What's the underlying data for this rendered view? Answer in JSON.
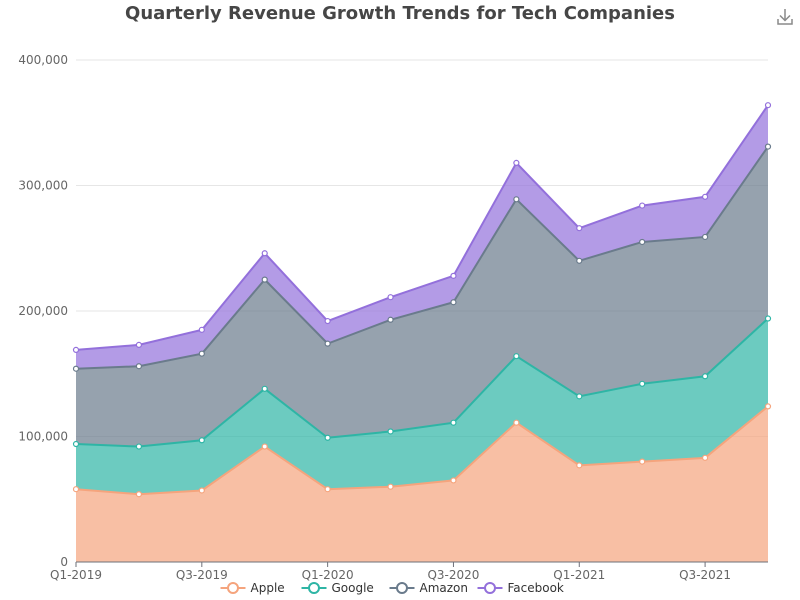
{
  "toolbar": {
    "download_icon": "download-icon"
  },
  "chart_data": {
    "type": "area",
    "stacked": true,
    "title": "Quarterly Revenue Growth Trends for Tech Companies",
    "x": [
      "Q1-2019",
      "Q2-2019",
      "Q3-2019",
      "Q4-2019",
      "Q1-2020",
      "Q2-2020",
      "Q3-2020",
      "Q4-2020",
      "Q1-2021",
      "Q2-2021",
      "Q3-2021",
      "Q4-2021"
    ],
    "x_tick_labels": [
      "Q1-2019",
      "Q3-2019",
      "Q1-2020",
      "Q3-2020",
      "Q1-2021",
      "Q3-2021"
    ],
    "y_ticks": [
      "0",
      "100,000",
      "200,000",
      "300,000",
      "400,000"
    ],
    "ylim": [
      0,
      400000
    ],
    "grid": true,
    "legend_position": "bottom",
    "series": [
      {
        "name": "Apple",
        "color": "#f5a47d",
        "values": [
          58000,
          54000,
          57000,
          92000,
          58000,
          60000,
          65000,
          111000,
          77000,
          80000,
          83000,
          124000
        ]
      },
      {
        "name": "Google",
        "color": "#2eb5a5",
        "values": [
          36000,
          38000,
          40000,
          46000,
          41000,
          44000,
          46000,
          53000,
          55000,
          62000,
          65000,
          70000
        ]
      },
      {
        "name": "Amazon",
        "color": "#6a7b8c",
        "values": [
          60000,
          64000,
          69000,
          87000,
          75000,
          89000,
          96000,
          125000,
          108000,
          113000,
          111000,
          137000
        ]
      },
      {
        "name": "Facebook",
        "color": "#9370db",
        "values": [
          15000,
          17000,
          19000,
          21000,
          18000,
          18000,
          21000,
          29000,
          26000,
          29000,
          32000,
          33000
        ]
      }
    ]
  }
}
